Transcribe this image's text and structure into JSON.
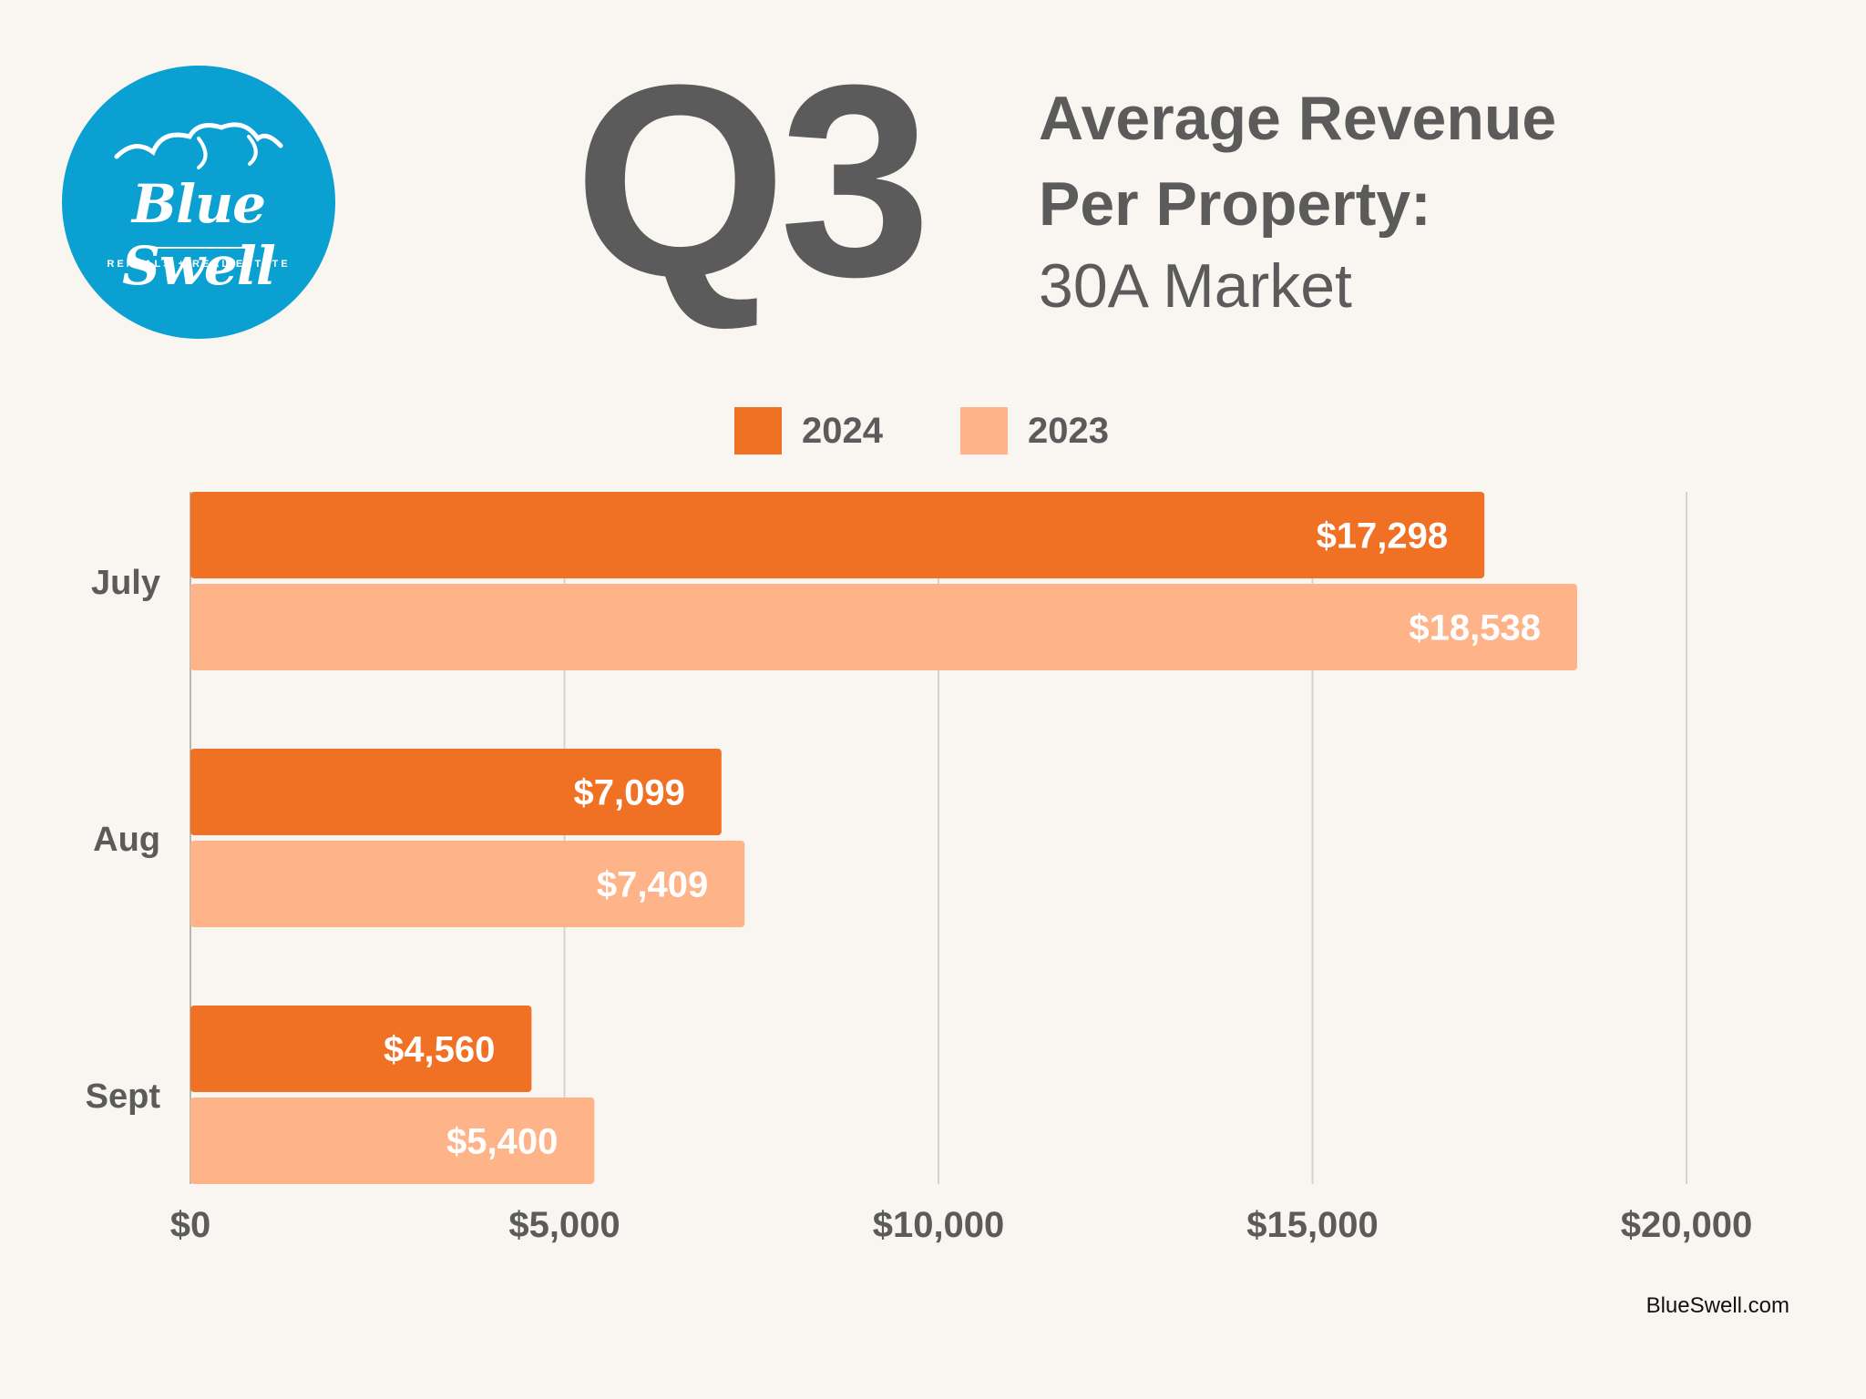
{
  "brand": {
    "logo_name": "Blue Swell",
    "logo_tagline": "RENTALS + REAL ESTATE",
    "website": "BlueSwell.com"
  },
  "header": {
    "big_label": "Q3",
    "title_line1": "Average Revenue",
    "title_line2": "Per Property:",
    "subtitle": "30A Market"
  },
  "colors": {
    "series_2024": "#f07024",
    "series_2023": "#ffb388",
    "text": "#5a5b5a",
    "logo_bg": "#0aa0d2",
    "grid": "#d6d3ce"
  },
  "chart_data": {
    "type": "bar",
    "orientation": "horizontal",
    "categories": [
      "July",
      "Aug",
      "Sept"
    ],
    "series": [
      {
        "name": "2024",
        "values": [
          17298,
          7099,
          4560
        ],
        "labels": [
          "$17,298",
          "$7,099",
          "$4,560"
        ]
      },
      {
        "name": "2023",
        "values": [
          18538,
          7409,
          5400
        ],
        "labels": [
          "$18,538",
          "$7,409",
          "$5,400"
        ]
      }
    ],
    "xlim": [
      0,
      20000
    ],
    "x_ticks": [
      0,
      5000,
      10000,
      15000,
      20000
    ],
    "x_tick_labels": [
      "$0",
      "$5,000",
      "$10,000",
      "$15,000",
      "$20,000"
    ],
    "grid": "vertical",
    "legend": "top-center"
  }
}
